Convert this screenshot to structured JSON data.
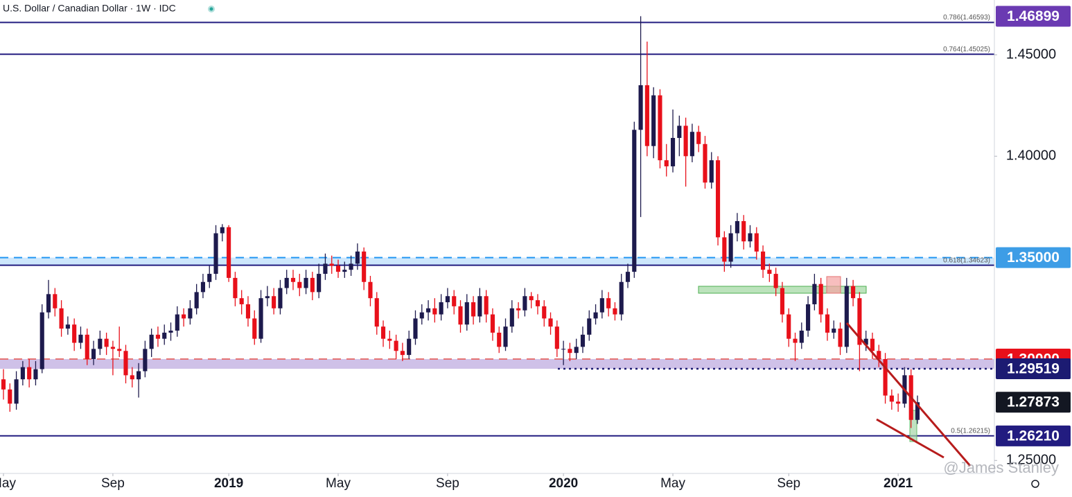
{
  "chart_data": {
    "type": "candlestick",
    "title": "U.S. Dollar / Canadian Dollar · 1W · IDC",
    "watermark": "@James Stanley",
    "up_color": "#1d1a4d",
    "down_color": "#e8101a",
    "ylim": [
      1.2436,
      1.477
    ],
    "yticks": [
      {
        "value": 1.25,
        "label": "1.25000"
      },
      {
        "value": 1.4,
        "label": "1.40000"
      },
      {
        "value": 1.45,
        "label": "1.45000"
      }
    ],
    "xticks": [
      {
        "value": 0,
        "label": "May"
      },
      {
        "value": 17,
        "label": "Sep"
      },
      {
        "value": 35,
        "label": "2019"
      },
      {
        "value": 52,
        "label": "May"
      },
      {
        "value": 69,
        "label": "Sep"
      },
      {
        "value": 87,
        "label": "2020"
      },
      {
        "value": 104,
        "label": "May"
      },
      {
        "value": 122,
        "label": "Sep"
      },
      {
        "value": 139,
        "label": "2021"
      }
    ],
    "fib_levels": [
      {
        "value": 1.46593,
        "label": "0.786(1.46593)"
      },
      {
        "value": 1.45025,
        "label": "0.764(1.45025)"
      },
      {
        "value": 1.34623,
        "label": "0.618(1.34623)"
      },
      {
        "value": 1.26215,
        "label": "0.5(1.26215)"
      }
    ],
    "price_labels": [
      {
        "value": 1.46899,
        "color": "#6a3ab2"
      },
      {
        "value": {
          "value": 1.35,
          "label": "1.35000"
        },
        "color": "#3d9de6"
      },
      {
        "value": {
          "value": 1.3,
          "label": "1.30000"
        },
        "color": "#e8101a"
      },
      {
        "value": 1.29519,
        "color": "#1c1b72"
      },
      {
        "value": 1.27873,
        "color": "#131722"
      },
      {
        "value": {
          "value": 1.2621,
          "label": "1.26210"
        },
        "color": "#221c80"
      }
    ],
    "candles": [
      [
        1.29,
        1.295,
        1.28,
        1.285
      ],
      [
        1.285,
        1.288,
        1.274,
        1.278
      ],
      [
        1.278,
        1.294,
        1.275,
        1.29
      ],
      [
        1.29,
        1.299,
        1.287,
        1.296
      ],
      [
        1.296,
        1.3,
        1.286,
        1.29
      ],
      [
        1.29,
        1.299,
        1.287,
        1.295
      ],
      [
        1.295,
        1.327,
        1.293,
        1.323
      ],
      [
        1.323,
        1.339,
        1.32,
        1.332
      ],
      [
        1.332,
        1.335,
        1.321,
        1.325
      ],
      [
        1.325,
        1.329,
        1.311,
        1.315
      ],
      [
        1.315,
        1.321,
        1.312,
        1.317
      ],
      [
        1.317,
        1.32,
        1.304,
        1.308
      ],
      [
        1.308,
        1.316,
        1.305,
        1.312
      ],
      [
        1.312,
        1.315,
        1.297,
        1.3
      ],
      [
        1.3,
        1.309,
        1.297,
        1.305
      ],
      [
        1.305,
        1.314,
        1.302,
        1.31
      ],
      [
        1.31,
        1.313,
        1.302,
        1.306
      ],
      [
        1.306,
        1.309,
        1.292,
        1.305
      ],
      [
        1.305,
        1.316,
        1.301,
        1.304
      ],
      [
        1.304,
        1.307,
        1.288,
        1.292
      ],
      [
        1.292,
        1.296,
        1.286,
        1.29
      ],
      [
        1.29,
        1.298,
        1.281,
        1.294
      ],
      [
        1.294,
        1.309,
        1.291,
        1.305
      ],
      [
        1.305,
        1.315,
        1.301,
        1.312
      ],
      [
        1.312,
        1.316,
        1.306,
        1.31
      ],
      [
        1.31,
        1.317,
        1.307,
        1.313
      ],
      [
        1.313,
        1.318,
        1.309,
        1.314
      ],
      [
        1.314,
        1.326,
        1.311,
        1.322
      ],
      [
        1.322,
        1.325,
        1.316,
        1.32
      ],
      [
        1.32,
        1.329,
        1.317,
        1.325
      ],
      [
        1.325,
        1.337,
        1.322,
        1.333
      ],
      [
        1.333,
        1.342,
        1.33,
        1.338
      ],
      [
        1.338,
        1.346,
        1.335,
        1.342
      ],
      [
        1.342,
        1.366,
        1.339,
        1.362
      ],
      [
        1.362,
        1.3665,
        1.358,
        1.365
      ],
      [
        1.365,
        1.366,
        1.338,
        1.34
      ],
      [
        1.34,
        1.343,
        1.326,
        1.33
      ],
      [
        1.33,
        1.334,
        1.322,
        1.327
      ],
      [
        1.327,
        1.331,
        1.316,
        1.32
      ],
      [
        1.32,
        1.324,
        1.307,
        1.31
      ],
      [
        1.31,
        1.334,
        1.308,
        1.33
      ],
      [
        1.33,
        1.336,
        1.326,
        1.331
      ],
      [
        1.331,
        1.335,
        1.322,
        1.325
      ],
      [
        1.325,
        1.339,
        1.322,
        1.335
      ],
      [
        1.335,
        1.344,
        1.332,
        1.34
      ],
      [
        1.34,
        1.344,
        1.334,
        1.338
      ],
      [
        1.338,
        1.342,
        1.331,
        1.335
      ],
      [
        1.335,
        1.344,
        1.332,
        1.34
      ],
      [
        1.34,
        1.343,
        1.329,
        1.333
      ],
      [
        1.333,
        1.347,
        1.33,
        1.342
      ],
      [
        1.342,
        1.352,
        1.339,
        1.347
      ],
      [
        1.347,
        1.351,
        1.342,
        1.346
      ],
      [
        1.346,
        1.349,
        1.34,
        1.343
      ],
      [
        1.343,
        1.348,
        1.34,
        1.344
      ],
      [
        1.344,
        1.351,
        1.341,
        1.347
      ],
      [
        1.347,
        1.357,
        1.344,
        1.353
      ],
      [
        1.353,
        1.355,
        1.334,
        1.338
      ],
      [
        1.338,
        1.341,
        1.326,
        1.33
      ],
      [
        1.33,
        1.333,
        1.312,
        1.316
      ],
      [
        1.316,
        1.319,
        1.306,
        1.31
      ],
      [
        1.31,
        1.314,
        1.305,
        1.309
      ],
      [
        1.309,
        1.312,
        1.3,
        1.304
      ],
      [
        1.304,
        1.308,
        1.299,
        1.302
      ],
      [
        1.302,
        1.314,
        1.3,
        1.31
      ],
      [
        1.31,
        1.324,
        1.307,
        1.32
      ],
      [
        1.32,
        1.327,
        1.317,
        1.323
      ],
      [
        1.323,
        1.329,
        1.319,
        1.325
      ],
      [
        1.325,
        1.33,
        1.318,
        1.322
      ],
      [
        1.322,
        1.332,
        1.319,
        1.328
      ],
      [
        1.328,
        1.335,
        1.325,
        1.331
      ],
      [
        1.331,
        1.334,
        1.322,
        1.326
      ],
      [
        1.326,
        1.329,
        1.313,
        1.317
      ],
      [
        1.317,
        1.332,
        1.314,
        1.328
      ],
      [
        1.328,
        1.331,
        1.317,
        1.321
      ],
      [
        1.321,
        1.335,
        1.318,
        1.331
      ],
      [
        1.331,
        1.334,
        1.318,
        1.322
      ],
      [
        1.322,
        1.325,
        1.309,
        1.313
      ],
      [
        1.313,
        1.316,
        1.303,
        1.306
      ],
      [
        1.306,
        1.32,
        1.304,
        1.316
      ],
      [
        1.316,
        1.329,
        1.313,
        1.325
      ],
      [
        1.325,
        1.328,
        1.32,
        1.324
      ],
      [
        1.324,
        1.335,
        1.321,
        1.331
      ],
      [
        1.331,
        1.333,
        1.325,
        1.329
      ],
      [
        1.329,
        1.332,
        1.322,
        1.326
      ],
      [
        1.326,
        1.329,
        1.316,
        1.32
      ],
      [
        1.32,
        1.323,
        1.312,
        1.316
      ],
      [
        1.316,
        1.319,
        1.301,
        1.305
      ],
      [
        1.305,
        1.309,
        1.297,
        1.305
      ],
      [
        1.305,
        1.308,
        1.299,
        1.303
      ],
      [
        1.303,
        1.31,
        1.3,
        1.306
      ],
      [
        1.306,
        1.316,
        1.303,
        1.312
      ],
      [
        1.312,
        1.324,
        1.309,
        1.32
      ],
      [
        1.32,
        1.327,
        1.317,
        1.323
      ],
      [
        1.323,
        1.334,
        1.32,
        1.33
      ],
      [
        1.33,
        1.333,
        1.321,
        1.325
      ],
      [
        1.325,
        1.328,
        1.319,
        1.322
      ],
      [
        1.322,
        1.342,
        1.319,
        1.338
      ],
      [
        1.338,
        1.347,
        1.335,
        1.343
      ],
      [
        1.343,
        1.417,
        1.34,
        1.413
      ],
      [
        1.413,
        1.469,
        1.37,
        1.435
      ],
      [
        1.435,
        1.4565,
        1.4,
        1.405
      ],
      [
        1.405,
        1.434,
        1.399,
        1.43
      ],
      [
        1.43,
        1.433,
        1.394,
        1.398
      ],
      [
        1.398,
        1.406,
        1.39,
        1.395
      ],
      [
        1.395,
        1.423,
        1.392,
        1.409
      ],
      [
        1.409,
        1.42,
        1.4,
        1.415
      ],
      [
        1.415,
        1.419,
        1.385,
        1.4
      ],
      [
        1.4,
        1.416,
        1.397,
        1.412
      ],
      [
        1.412,
        1.415,
        1.402,
        1.406
      ],
      [
        1.406,
        1.41,
        1.384,
        1.387
      ],
      [
        1.387,
        1.402,
        1.384,
        1.398
      ],
      [
        1.398,
        1.4,
        1.356,
        1.36
      ],
      [
        1.36,
        1.363,
        1.343,
        1.348
      ],
      [
        1.348,
        1.366,
        1.345,
        1.362
      ],
      [
        1.362,
        1.372,
        1.358,
        1.368
      ],
      [
        1.368,
        1.371,
        1.354,
        1.358
      ],
      [
        1.358,
        1.366,
        1.355,
        1.362
      ],
      [
        1.362,
        1.365,
        1.349,
        1.353
      ],
      [
        1.353,
        1.356,
        1.34,
        1.344
      ],
      [
        1.344,
        1.347,
        1.338,
        1.342
      ],
      [
        1.342,
        1.345,
        1.331,
        1.335
      ],
      [
        1.335,
        1.338,
        1.318,
        1.322
      ],
      [
        1.322,
        1.325,
        1.306,
        1.31
      ],
      [
        1.31,
        1.313,
        1.299,
        1.308
      ],
      [
        1.308,
        1.318,
        1.305,
        1.314
      ],
      [
        1.314,
        1.331,
        1.311,
        1.327
      ],
      [
        1.327,
        1.342,
        1.324,
        1.337
      ],
      [
        1.337,
        1.34,
        1.318,
        1.322
      ],
      [
        1.322,
        1.325,
        1.309,
        1.313
      ],
      [
        1.313,
        1.319,
        1.31,
        1.315
      ],
      [
        1.315,
        1.318,
        1.302,
        1.306
      ],
      [
        1.306,
        1.34,
        1.303,
        1.336
      ],
      [
        1.336,
        1.339,
        1.326,
        1.33
      ],
      [
        1.33,
        1.333,
        1.294,
        1.307
      ],
      [
        1.307,
        1.314,
        1.304,
        1.31
      ],
      [
        1.31,
        1.313,
        1.3,
        1.304
      ],
      [
        1.304,
        1.307,
        1.296,
        1.3
      ],
      [
        1.3,
        1.303,
        1.278,
        1.282
      ],
      [
        1.282,
        1.285,
        1.275,
        1.279
      ],
      [
        1.279,
        1.283,
        1.274,
        1.278
      ],
      [
        1.278,
        1.296,
        1.276,
        1.292
      ],
      [
        1.292,
        1.295,
        1.266,
        1.27
      ],
      [
        1.27,
        1.282,
        1.268,
        1.2787
      ]
    ]
  }
}
